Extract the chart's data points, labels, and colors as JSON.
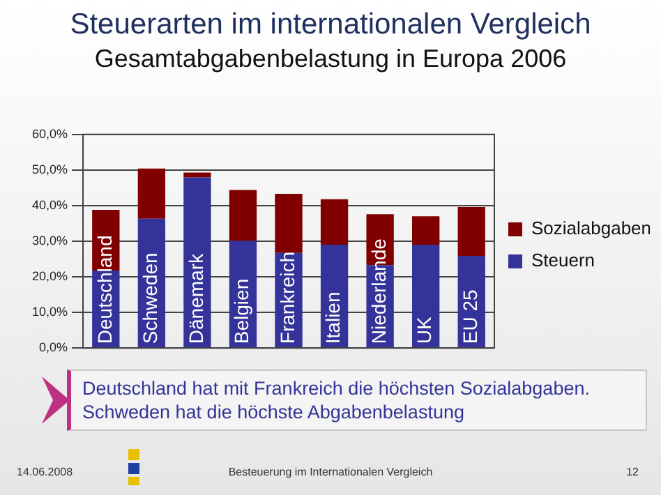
{
  "chart_data": {
    "type": "bar",
    "title": "Steuerarten im internationalen Vergleich",
    "subtitle": "Gesamtabgabenbelastung in Europa 2006",
    "categories": [
      "Deutschland",
      "Schweden",
      "Dänemark",
      "Belgien",
      "Frankreich",
      "Italien",
      "Niederlande",
      "UK",
      "EU 25"
    ],
    "stacked": true,
    "series": [
      {
        "name": "Steuern",
        "color": "#333399",
        "values": [
          21.8,
          36.3,
          47.9,
          30.1,
          26.7,
          29.0,
          23.3,
          29.0,
          25.9
        ]
      },
      {
        "name": "Sozialabgaben",
        "color": "#800000",
        "values": [
          17.0,
          14.1,
          1.4,
          14.3,
          16.6,
          12.8,
          14.3,
          8.0,
          13.7
        ]
      }
    ],
    "ylim": [
      0,
      60
    ],
    "yticks": [
      {
        "value": 0,
        "label": "0,0%"
      },
      {
        "value": 10,
        "label": "10,0%"
      },
      {
        "value": 20,
        "label": "20,0%"
      },
      {
        "value": 30,
        "label": "30,0%"
      },
      {
        "value": 40,
        "label": "40,0%"
      },
      {
        "value": 50,
        "label": "50,0%"
      },
      {
        "value": 60,
        "label": "60,0%"
      }
    ],
    "grid": "y",
    "legend": "right",
    "annotations": [
      "Deutschland hat mit Frankreich die höchsten Sozialabgaben.\nSchweden hat die höchste Abgabenbelastung",
      "14.06.2008",
      "Besteuerung im Internationalen Vergleich",
      "12"
    ]
  }
}
